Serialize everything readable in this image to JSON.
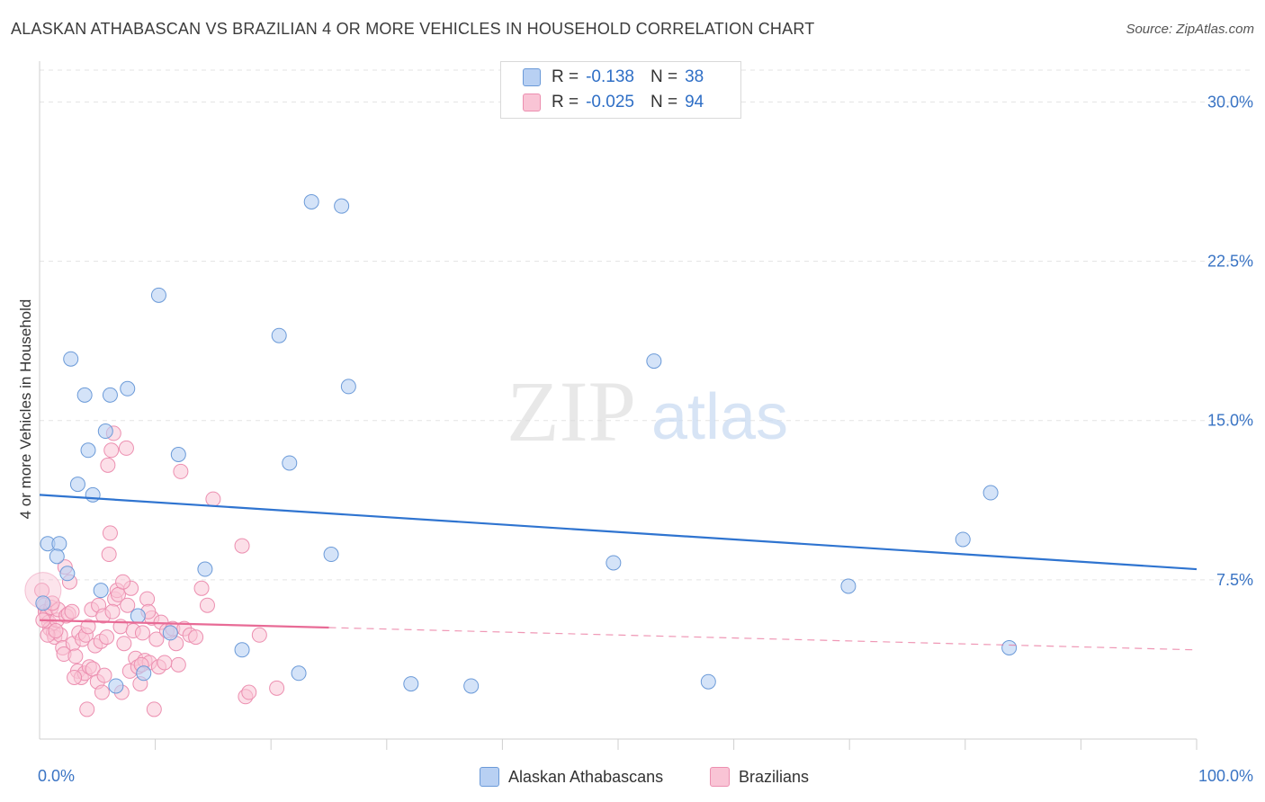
{
  "title": "ALASKAN ATHABASCAN VS BRAZILIAN 4 OR MORE VEHICLES IN HOUSEHOLD CORRELATION CHART",
  "source": "Source: ZipAtlas.com",
  "watermark": {
    "zip": "ZIP",
    "atlas": "atlas"
  },
  "legend": {
    "series1": {
      "r_label": "R =",
      "r_value": "-0.138",
      "n_label": "N =",
      "n_value": "38"
    },
    "series2": {
      "r_label": "R =",
      "r_value": "-0.025",
      "n_label": "N =",
      "n_value": "94"
    }
  },
  "bottom_legend": {
    "series1": "Alaskan Athabascans",
    "series2": "Brazilians"
  },
  "colors": {
    "blue_fill": "#b8d0f3",
    "blue_stroke": "#6b9ad8",
    "blue_line": "#2f74d0",
    "pink_fill": "#f9c4d5",
    "pink_stroke": "#ec8fb0",
    "pink_line": "#e86b96",
    "grid": "#e3e3e3",
    "axis_text": "#3a74c4"
  },
  "chart_data": {
    "type": "scatter",
    "title": "ALASKAN ATHABASCAN VS BRAZILIAN 4 OR MORE VEHICLES IN HOUSEHOLD CORRELATION CHART",
    "xlabel": "",
    "ylabel": "4 or more Vehicles in Household",
    "xlim": [
      0,
      100
    ],
    "ylim": [
      0,
      31.5
    ],
    "x_tick_labels": [
      "0.0%",
      "100.0%"
    ],
    "y_ticks": [
      7.5,
      15.0,
      22.5,
      30.0
    ],
    "y_tick_labels": [
      "7.5%",
      "15.0%",
      "22.5%",
      "30.0%"
    ],
    "series": [
      {
        "name": "Alaskan Athabascans",
        "trend": {
          "x": [
            0,
            100
          ],
          "y": [
            11.5,
            8.0
          ],
          "dashed_from": null
        },
        "points": [
          [
            23.5,
            25.3
          ],
          [
            26.1,
            25.1
          ],
          [
            10.3,
            20.9
          ],
          [
            20.7,
            19.0
          ],
          [
            2.7,
            17.9
          ],
          [
            53.1,
            17.8
          ],
          [
            26.7,
            16.6
          ],
          [
            7.6,
            16.5
          ],
          [
            3.9,
            16.2
          ],
          [
            6.1,
            16.2
          ],
          [
            5.7,
            14.5
          ],
          [
            4.2,
            13.6
          ],
          [
            12.0,
            13.4
          ],
          [
            21.6,
            13.0
          ],
          [
            3.3,
            12.0
          ],
          [
            4.6,
            11.5
          ],
          [
            82.2,
            11.6
          ],
          [
            0.7,
            9.2
          ],
          [
            1.7,
            9.2
          ],
          [
            79.8,
            9.4
          ],
          [
            1.5,
            8.6
          ],
          [
            25.2,
            8.7
          ],
          [
            49.6,
            8.3
          ],
          [
            14.3,
            8.0
          ],
          [
            2.4,
            7.8
          ],
          [
            5.3,
            7.0
          ],
          [
            69.9,
            7.2
          ],
          [
            0.3,
            6.4
          ],
          [
            8.5,
            5.8
          ],
          [
            11.3,
            5.0
          ],
          [
            17.5,
            4.2
          ],
          [
            83.8,
            4.3
          ],
          [
            6.6,
            2.5
          ],
          [
            22.4,
            3.1
          ],
          [
            32.1,
            2.6
          ],
          [
            37.3,
            2.5
          ],
          [
            57.8,
            2.7
          ],
          [
            9.0,
            3.1
          ]
        ]
      },
      {
        "name": "Brazilians",
        "trend": {
          "x": [
            0,
            100
          ],
          "y": [
            5.6,
            4.2
          ],
          "dashed_from": 25
        },
        "points": [
          [
            0.2,
            7.0
          ],
          [
            0.4,
            6.3
          ],
          [
            0.5,
            6.0
          ],
          [
            0.6,
            5.8
          ],
          [
            0.8,
            5.5
          ],
          [
            0.9,
            5.2
          ],
          [
            1.0,
            6.2
          ],
          [
            1.2,
            5.0
          ],
          [
            1.3,
            4.8
          ],
          [
            1.5,
            5.6
          ],
          [
            1.6,
            6.1
          ],
          [
            1.8,
            4.9
          ],
          [
            2.0,
            4.3
          ],
          [
            2.1,
            4.0
          ],
          [
            2.3,
            5.8
          ],
          [
            2.5,
            5.9
          ],
          [
            2.6,
            7.4
          ],
          [
            2.8,
            6.0
          ],
          [
            2.9,
            4.5
          ],
          [
            3.1,
            3.9
          ],
          [
            3.3,
            3.2
          ],
          [
            3.4,
            5.0
          ],
          [
            3.6,
            2.9
          ],
          [
            3.7,
            4.7
          ],
          [
            3.9,
            3.1
          ],
          [
            4.0,
            4.9
          ],
          [
            4.2,
            5.3
          ],
          [
            4.3,
            3.4
          ],
          [
            4.5,
            6.1
          ],
          [
            4.6,
            3.3
          ],
          [
            4.8,
            4.4
          ],
          [
            5.0,
            2.7
          ],
          [
            5.1,
            6.3
          ],
          [
            5.3,
            4.6
          ],
          [
            5.5,
            5.8
          ],
          [
            5.6,
            3.0
          ],
          [
            5.8,
            4.8
          ],
          [
            5.9,
            12.9
          ],
          [
            6.0,
            8.7
          ],
          [
            6.1,
            9.7
          ],
          [
            6.2,
            13.6
          ],
          [
            6.4,
            14.4
          ],
          [
            6.5,
            6.6
          ],
          [
            6.7,
            7.0
          ],
          [
            6.8,
            6.8
          ],
          [
            7.0,
            5.3
          ],
          [
            7.1,
            2.2
          ],
          [
            7.3,
            4.5
          ],
          [
            7.5,
            13.7
          ],
          [
            7.6,
            6.3
          ],
          [
            7.8,
            3.2
          ],
          [
            7.9,
            7.1
          ],
          [
            8.1,
            5.1
          ],
          [
            8.3,
            3.8
          ],
          [
            8.5,
            3.4
          ],
          [
            8.7,
            2.6
          ],
          [
            8.9,
            5.0
          ],
          [
            9.1,
            3.7
          ],
          [
            9.3,
            6.6
          ],
          [
            9.5,
            3.6
          ],
          [
            9.7,
            5.7
          ],
          [
            9.9,
            1.4
          ],
          [
            10.1,
            4.7
          ],
          [
            10.3,
            3.4
          ],
          [
            10.5,
            5.5
          ],
          [
            11.0,
            5.1
          ],
          [
            11.5,
            5.2
          ],
          [
            12.0,
            3.5
          ],
          [
            12.2,
            12.6
          ],
          [
            12.5,
            5.2
          ],
          [
            13.0,
            4.9
          ],
          [
            13.5,
            4.8
          ],
          [
            14.0,
            7.1
          ],
          [
            14.5,
            6.3
          ],
          [
            15.0,
            11.3
          ],
          [
            17.5,
            9.1
          ],
          [
            17.8,
            2.0
          ],
          [
            18.1,
            2.2
          ],
          [
            19.0,
            4.9
          ],
          [
            20.5,
            2.4
          ],
          [
            0.7,
            4.9
          ],
          [
            1.4,
            5.1
          ],
          [
            2.2,
            8.1
          ],
          [
            3.0,
            2.9
          ],
          [
            4.1,
            1.4
          ],
          [
            5.4,
            2.2
          ],
          [
            6.3,
            6.0
          ],
          [
            7.2,
            7.4
          ],
          [
            8.8,
            3.5
          ],
          [
            9.4,
            6.0
          ],
          [
            10.8,
            3.6
          ],
          [
            11.8,
            4.5
          ],
          [
            0.3,
            5.6
          ],
          [
            1.1,
            6.4
          ]
        ]
      }
    ]
  }
}
